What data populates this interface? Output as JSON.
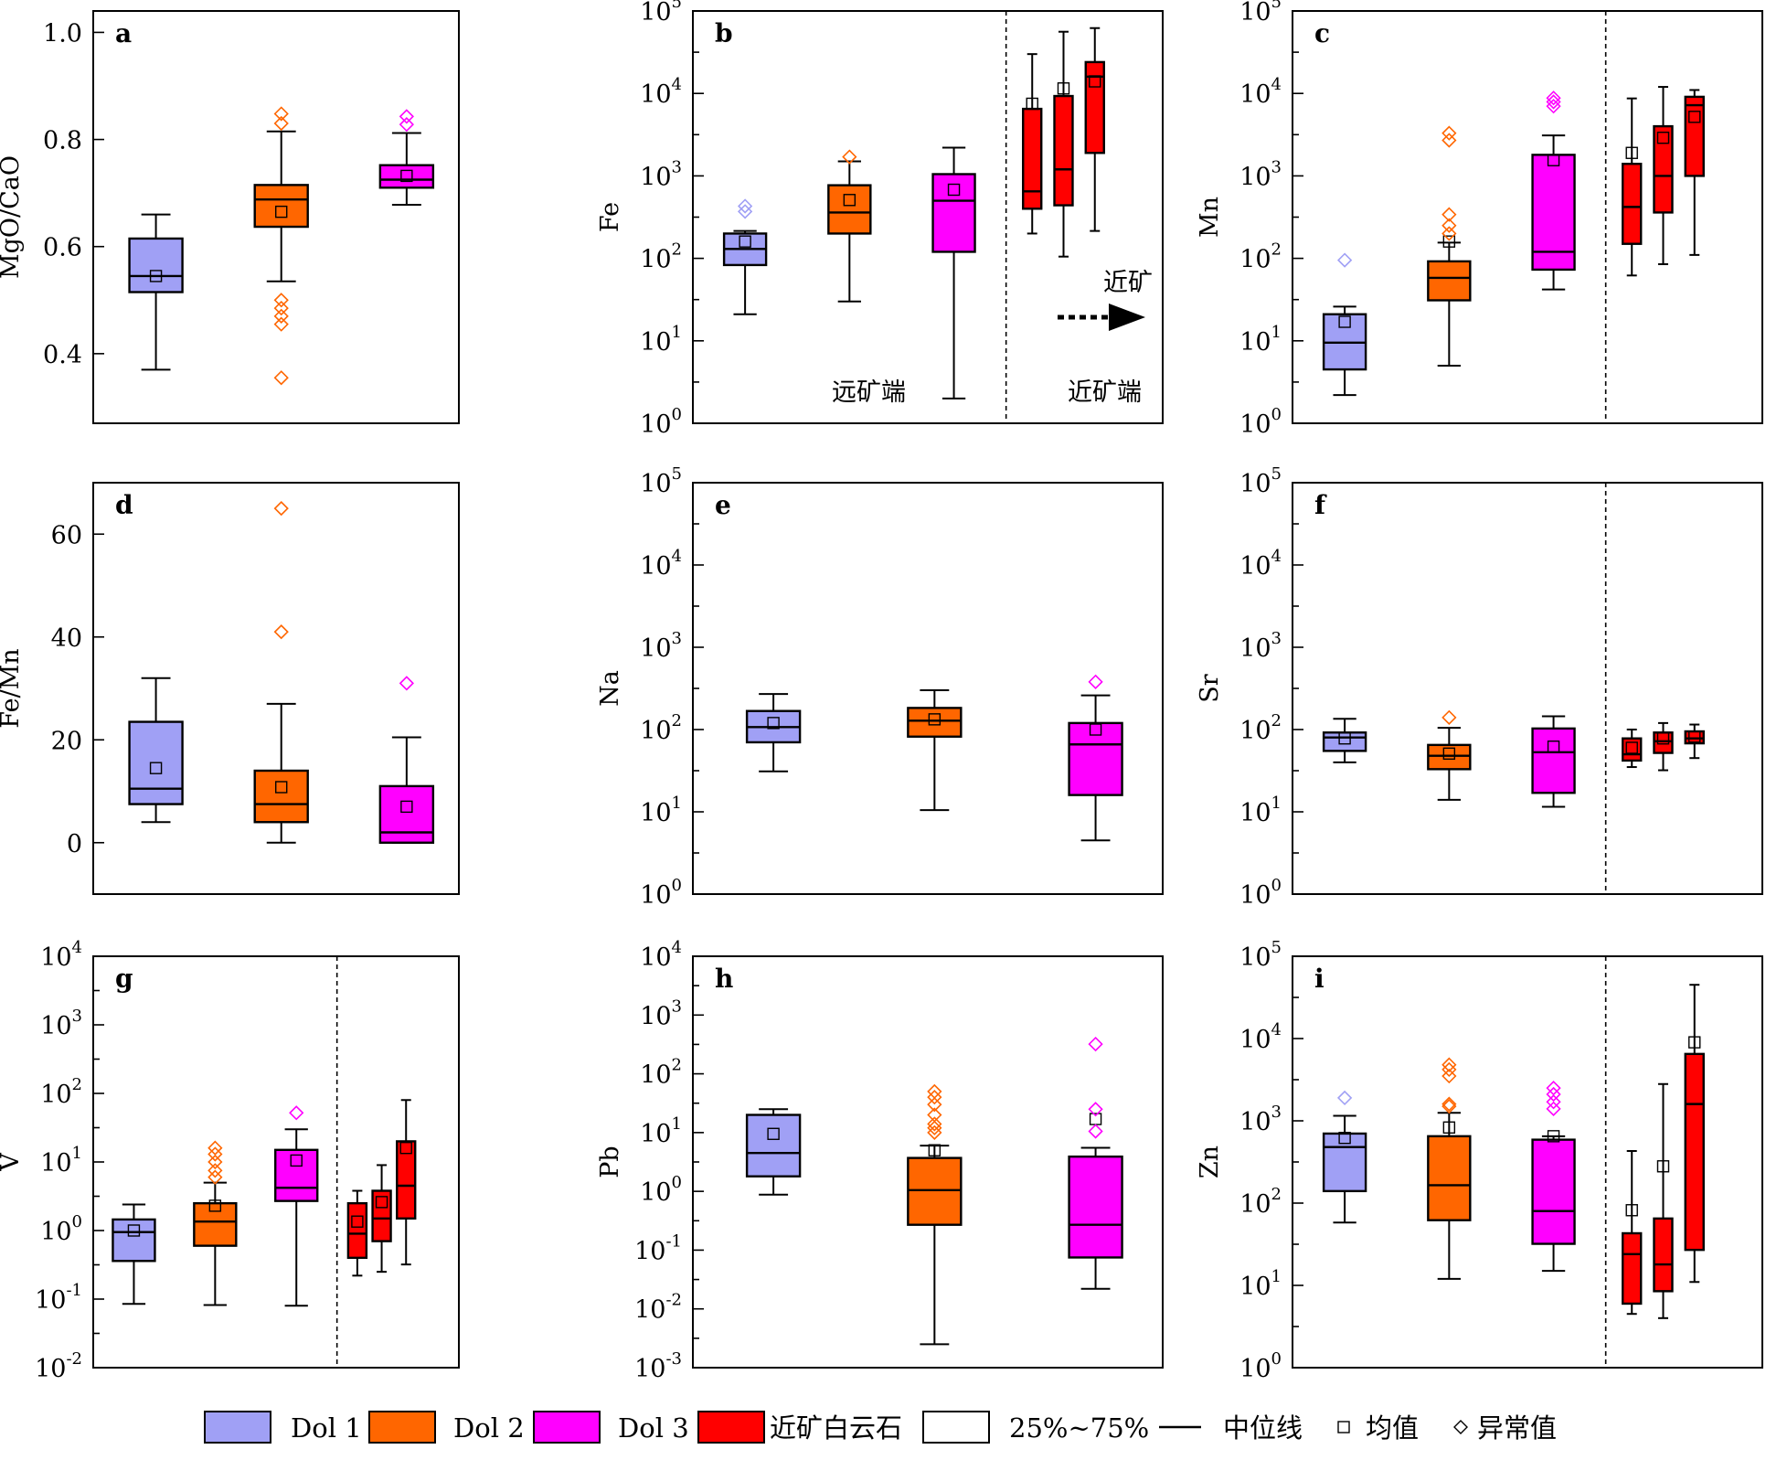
{
  "colors": {
    "Dol 1": "#a0a0f5",
    "Dol 2": "#ff6600",
    "Dol 3": "#ff00ff",
    "near": "#ff0000"
  },
  "annotations": {
    "far_end": "远矿端",
    "near_end": "近矿端",
    "toward_ore": "近矿"
  },
  "legend": {
    "items": [
      {
        "label": "Dol 1",
        "kind": "box",
        "color": "#a0a0f5"
      },
      {
        "label": "Dol 2",
        "kind": "box",
        "color": "#ff6600"
      },
      {
        "label": "Dol 3",
        "kind": "box",
        "color": "#ff00ff"
      },
      {
        "label": "近矿白云石",
        "kind": "box",
        "color": "#ff0000"
      },
      {
        "label": "25%~75%",
        "kind": "box",
        "color": "#ffffff"
      },
      {
        "label": "中位线",
        "kind": "line"
      },
      {
        "label": "均值",
        "kind": "square"
      },
      {
        "label": "异常值",
        "kind": "diamond"
      }
    ]
  },
  "chart_data": [
    {
      "id": "a",
      "type": "box",
      "panel_label": "a",
      "ylabel": "MgO/CaO",
      "scale": "linear",
      "ylim": [
        0.27,
        1.04
      ],
      "ticks": [
        0.4,
        0.6,
        0.8,
        1.0
      ],
      "tick_labels": [
        "0.4",
        "0.6",
        "0.8",
        "1.0"
      ],
      "divider": false,
      "xlim": [
        0,
        3.5
      ],
      "boxes": [
        {
          "group": "Dol 1",
          "x": 0.6,
          "min": 0.37,
          "q1": 0.515,
          "median": 0.545,
          "q3": 0.615,
          "max": 0.66,
          "mean": 0.545,
          "outliers": []
        },
        {
          "group": "Dol 2",
          "x": 1.8,
          "min": 0.535,
          "q1": 0.637,
          "median": 0.688,
          "q3": 0.715,
          "max": 0.815,
          "mean": 0.665,
          "outliers": [
            0.355,
            0.455,
            0.47,
            0.485,
            0.5,
            0.83,
            0.848
          ]
        },
        {
          "group": "Dol 3",
          "x": 3.0,
          "min": 0.678,
          "q1": 0.71,
          "median": 0.725,
          "q3": 0.752,
          "max": 0.812,
          "mean": 0.732,
          "outliers": [
            0.828,
            0.843
          ]
        }
      ]
    },
    {
      "id": "b",
      "type": "box",
      "panel_label": "b",
      "ylabel": "Fe",
      "scale": "log",
      "ylim": [
        1,
        100000
      ],
      "ticks": [
        1,
        10,
        100,
        1000,
        10000,
        100000
      ],
      "divider": true,
      "xlim": [
        0,
        4.5
      ],
      "boxes": [
        {
          "group": "Dol 1",
          "x": 0.5,
          "min": 21,
          "q1": 83,
          "median": 130,
          "q3": 200,
          "max": 215,
          "mean": 160,
          "outliers": [
            370,
            430
          ]
        },
        {
          "group": "Dol 2",
          "x": 1.5,
          "min": 30,
          "q1": 200,
          "median": 360,
          "q3": 770,
          "max": 1500,
          "mean": 510,
          "outliers": [
            1700
          ]
        },
        {
          "group": "Dol 3",
          "x": 2.5,
          "min": 2,
          "q1": 120,
          "median": 500,
          "q3": 1050,
          "max": 2200,
          "mean": 680,
          "outliers": []
        },
        {
          "group": "near",
          "x": 3.25,
          "min": 200,
          "q1": 400,
          "median": 650,
          "q3": 6500,
          "max": 30000,
          "mean": 7500,
          "outliers": []
        },
        {
          "group": "near",
          "x": 3.55,
          "min": 105,
          "q1": 440,
          "median": 1200,
          "q3": 9300,
          "max": 56000,
          "mean": 11500,
          "outliers": []
        },
        {
          "group": "near",
          "x": 3.85,
          "min": 215,
          "q1": 1900,
          "median": 16000,
          "q3": 24000,
          "max": 62000,
          "mean": 14000,
          "outliers": []
        }
      ]
    },
    {
      "id": "c",
      "type": "box",
      "panel_label": "c",
      "ylabel": "Mn",
      "scale": "log",
      "ylim": [
        1,
        100000
      ],
      "ticks": [
        1,
        10,
        100,
        1000,
        10000,
        100000
      ],
      "divider": true,
      "xlim": [
        0,
        4.5
      ],
      "boxes": [
        {
          "group": "Dol 1",
          "x": 0.5,
          "min": 2.2,
          "q1": 4.5,
          "median": 9.5,
          "q3": 21,
          "max": 26,
          "mean": 17,
          "outliers": [
            95
          ]
        },
        {
          "group": "Dol 2",
          "x": 1.5,
          "min": 5,
          "q1": 31,
          "median": 58,
          "q3": 92,
          "max": 155,
          "mean": 160,
          "outliers": [
            200,
            250,
            340,
            2700,
            3300
          ]
        },
        {
          "group": "Dol 3",
          "x": 2.5,
          "min": 42,
          "q1": 73,
          "median": 120,
          "q3": 1800,
          "max": 3100,
          "mean": 1550,
          "outliers": [
            7000,
            7900,
            8800
          ]
        },
        {
          "group": "near",
          "x": 3.25,
          "min": 62,
          "q1": 150,
          "median": 420,
          "q3": 1400,
          "max": 8700,
          "mean": 1900,
          "outliers": []
        },
        {
          "group": "near",
          "x": 3.55,
          "min": 85,
          "q1": 360,
          "median": 1000,
          "q3": 4000,
          "max": 12000,
          "mean": 2900,
          "outliers": []
        },
        {
          "group": "near",
          "x": 3.85,
          "min": 110,
          "q1": 1000,
          "median": 7200,
          "q3": 9100,
          "max": 11000,
          "mean": 5200,
          "outliers": []
        }
      ]
    },
    {
      "id": "d",
      "type": "box",
      "panel_label": "d",
      "ylabel": "Fe/Mn",
      "scale": "linear",
      "ylim": [
        -10,
        70
      ],
      "ticks": [
        0,
        20,
        40,
        60
      ],
      "tick_labels": [
        "0",
        "20",
        "40",
        "60"
      ],
      "divider": false,
      "xlim": [
        0,
        3.5
      ],
      "boxes": [
        {
          "group": "Dol 1",
          "x": 0.6,
          "min": 4,
          "q1": 7.5,
          "median": 10.5,
          "q3": 23.5,
          "max": 32,
          "mean": 14.5,
          "outliers": []
        },
        {
          "group": "Dol 2",
          "x": 1.8,
          "min": 0,
          "q1": 4,
          "median": 7.5,
          "q3": 14,
          "max": 27,
          "mean": 10.8,
          "outliers": [
            41,
            65
          ]
        },
        {
          "group": "Dol 3",
          "x": 3.0,
          "min": 0,
          "q1": 0,
          "median": 2,
          "q3": 11,
          "max": 20.5,
          "mean": 7,
          "outliers": [
            31
          ]
        }
      ]
    },
    {
      "id": "e",
      "type": "box",
      "panel_label": "e",
      "ylabel": "Na",
      "scale": "log",
      "ylim": [
        1,
        100000
      ],
      "ticks": [
        1,
        10,
        100,
        1000,
        10000,
        100000
      ],
      "divider": false,
      "xlim": [
        0,
        3.5
      ],
      "boxes": [
        {
          "group": "Dol 1",
          "x": 0.6,
          "min": 31,
          "q1": 70,
          "median": 107,
          "q3": 168,
          "max": 270,
          "mean": 120,
          "outliers": []
        },
        {
          "group": "Dol 2",
          "x": 1.8,
          "min": 10.5,
          "q1": 82,
          "median": 128,
          "q3": 183,
          "max": 300,
          "mean": 133,
          "outliers": []
        },
        {
          "group": "Dol 3",
          "x": 3.0,
          "min": 4.5,
          "q1": 16,
          "median": 66,
          "q3": 120,
          "max": 260,
          "mean": 100,
          "outliers": [
            380
          ]
        }
      ]
    },
    {
      "id": "f",
      "type": "box",
      "panel_label": "f",
      "ylabel": "Sr",
      "scale": "log",
      "ylim": [
        1,
        100000
      ],
      "ticks": [
        1,
        10,
        100,
        1000,
        10000,
        100000
      ],
      "divider": true,
      "xlim": [
        0,
        4.5
      ],
      "boxes": [
        {
          "group": "Dol 1",
          "x": 0.5,
          "min": 40,
          "q1": 55,
          "median": 80,
          "q3": 92,
          "max": 135,
          "mean": 78,
          "outliers": []
        },
        {
          "group": "Dol 2",
          "x": 1.5,
          "min": 14,
          "q1": 33,
          "median": 48,
          "q3": 65,
          "max": 105,
          "mean": 51,
          "outliers": [
            140
          ]
        },
        {
          "group": "Dol 3",
          "x": 2.5,
          "min": 11.5,
          "q1": 17,
          "median": 53,
          "q3": 103,
          "max": 145,
          "mean": 62,
          "outliers": []
        },
        {
          "group": "near",
          "x": 3.25,
          "min": 35,
          "q1": 42,
          "median": 50,
          "q3": 78,
          "max": 100,
          "mean": 60,
          "outliers": []
        },
        {
          "group": "near",
          "x": 3.55,
          "min": 32,
          "q1": 52,
          "median": 72,
          "q3": 92,
          "max": 120,
          "mean": 78,
          "outliers": []
        },
        {
          "group": "near",
          "x": 3.85,
          "min": 45,
          "q1": 68,
          "median": 78,
          "q3": 95,
          "max": 115,
          "mean": 82,
          "outliers": []
        }
      ]
    },
    {
      "id": "g",
      "type": "box",
      "panel_label": "g",
      "ylabel": "V",
      "scale": "log",
      "ylim": [
        0.01,
        10000
      ],
      "ticks": [
        0.01,
        0.1,
        1,
        10,
        100,
        1000,
        10000
      ],
      "divider": true,
      "xlim": [
        0,
        4.5
      ],
      "boxes": [
        {
          "group": "Dol 1",
          "x": 0.5,
          "min": 0.085,
          "q1": 0.36,
          "median": 0.95,
          "q3": 1.45,
          "max": 2.4,
          "mean": 1.0,
          "outliers": []
        },
        {
          "group": "Dol 2",
          "x": 1.5,
          "min": 0.082,
          "q1": 0.6,
          "median": 1.35,
          "q3": 2.5,
          "max": 5,
          "mean": 2.3,
          "outliers": [
            6,
            7.5,
            10,
            13,
            16
          ]
        },
        {
          "group": "Dol 3",
          "x": 2.5,
          "min": 0.08,
          "q1": 2.7,
          "median": 4.2,
          "q3": 15,
          "max": 30,
          "mean": 10.5,
          "outliers": [
            52
          ]
        },
        {
          "group": "near",
          "x": 3.25,
          "min": 0.22,
          "q1": 0.4,
          "median": 0.9,
          "q3": 2.5,
          "max": 3.8,
          "mean": 1.35,
          "outliers": []
        },
        {
          "group": "near",
          "x": 3.55,
          "min": 0.25,
          "q1": 0.7,
          "median": 1.5,
          "q3": 3.8,
          "max": 9,
          "mean": 2.6,
          "outliers": []
        },
        {
          "group": "near",
          "x": 3.85,
          "min": 0.32,
          "q1": 1.5,
          "median": 4.5,
          "q3": 20,
          "max": 80,
          "mean": 16,
          "outliers": []
        }
      ]
    },
    {
      "id": "h",
      "type": "box",
      "panel_label": "h",
      "ylabel": "Pb",
      "scale": "log",
      "ylim": [
        0.001,
        10000
      ],
      "ticks": [
        0.001,
        0.01,
        0.1,
        1,
        10,
        100,
        1000,
        10000
      ],
      "divider": false,
      "xlim": [
        0,
        3.5
      ],
      "boxes": [
        {
          "group": "Dol 1",
          "x": 0.6,
          "min": 0.88,
          "q1": 1.8,
          "median": 4.5,
          "q3": 20,
          "max": 25,
          "mean": 9.5,
          "outliers": []
        },
        {
          "group": "Dol 2",
          "x": 1.8,
          "min": 0.0025,
          "q1": 0.27,
          "median": 1.05,
          "q3": 3.7,
          "max": 6,
          "mean": 5,
          "outliers": [
            10,
            12,
            14,
            20,
            30,
            40,
            50
          ]
        },
        {
          "group": "Dol 3",
          "x": 3.0,
          "min": 0.022,
          "q1": 0.075,
          "median": 0.27,
          "q3": 3.9,
          "max": 5.5,
          "mean": 17,
          "outliers": [
            10.5,
            25,
            320
          ]
        }
      ]
    },
    {
      "id": "i",
      "type": "box",
      "panel_label": "i",
      "ylabel": "Zn",
      "scale": "log",
      "ylim": [
        1,
        100000
      ],
      "ticks": [
        1,
        10,
        100,
        1000,
        10000,
        100000
      ],
      "divider": true,
      "xlim": [
        0,
        4.5
      ],
      "boxes": [
        {
          "group": "Dol 1",
          "x": 0.5,
          "min": 58,
          "q1": 140,
          "median": 480,
          "q3": 700,
          "max": 1150,
          "mean": 620,
          "outliers": [
            1900
          ]
        },
        {
          "group": "Dol 2",
          "x": 1.5,
          "min": 12,
          "q1": 62,
          "median": 165,
          "q3": 650,
          "max": 1250,
          "mean": 830,
          "outliers": [
            1500,
            1600,
            3500,
            4200,
            4800
          ]
        },
        {
          "group": "Dol 3",
          "x": 2.5,
          "min": 15,
          "q1": 32,
          "median": 80,
          "q3": 590,
          "max": 650,
          "mean": 650,
          "outliers": [
            1400,
            1700,
            2100,
            2500
          ]
        },
        {
          "group": "near",
          "x": 3.25,
          "min": 4.5,
          "q1": 6,
          "median": 24,
          "q3": 43,
          "max": 430,
          "mean": 82,
          "outliers": []
        },
        {
          "group": "near",
          "x": 3.55,
          "min": 4,
          "q1": 8.5,
          "median": 18,
          "q3": 65,
          "max": 2800,
          "mean": 280,
          "outliers": []
        },
        {
          "group": "near",
          "x": 3.85,
          "min": 11,
          "q1": 27,
          "median": 1600,
          "q3": 6500,
          "max": 45000,
          "mean": 9000,
          "outliers": []
        }
      ]
    }
  ]
}
